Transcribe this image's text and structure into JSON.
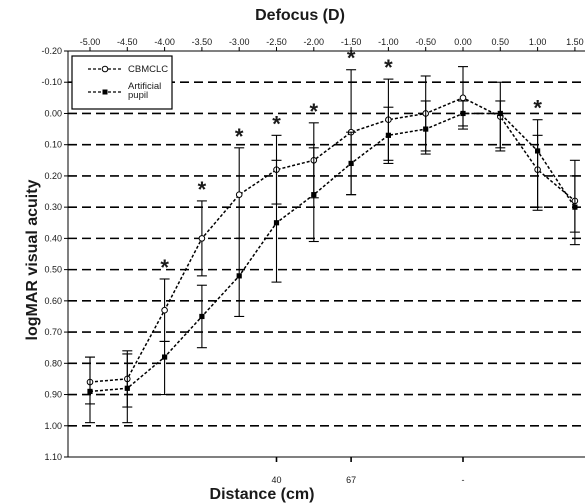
{
  "chart_data": {
    "type": "line",
    "title_top": "Defocus (D)",
    "xlabel_bottom": "Distance (cm)",
    "ylabel": "logMAR visual acuity",
    "x_top_ticks": [
      -5.0,
      -4.5,
      -4.0,
      -3.5,
      -3.0,
      -2.5,
      -2.0,
      -1.5,
      -1.0,
      -0.5,
      0.0,
      0.5,
      1.0,
      1.5
    ],
    "x_top_tick_labels": [
      "-5.00",
      "-4.50",
      "-4.00",
      "-3.50",
      "-3.00",
      "-2.50",
      "-2.00",
      "-1.50",
      "-1.00",
      "-0.50",
      "0.00",
      "0.50",
      "1.00",
      "1.50"
    ],
    "y_ticks": [
      -0.2,
      -0.1,
      0.0,
      0.1,
      0.2,
      0.3,
      0.4,
      0.5,
      0.6,
      0.7,
      0.8,
      0.9,
      1.0,
      1.1
    ],
    "y_tick_labels": [
      "-0.20",
      "-0.10",
      "0.00",
      "0.10",
      "0.20",
      "0.30",
      "0.40",
      "0.50",
      "0.60",
      "0.70",
      "0.80",
      "0.90",
      "1.00",
      "1.10"
    ],
    "ylim": [
      -0.2,
      1.1
    ],
    "y_inverted": true,
    "grid": true,
    "legend_position": "top-left",
    "bottom_ticks": [
      {
        "x": -2.5,
        "label": "40"
      },
      {
        "x": -1.5,
        "label": "67"
      },
      {
        "x": 0.0,
        "label": "-"
      }
    ],
    "x": [
      -5.0,
      -4.5,
      -4.0,
      -3.5,
      -3.0,
      -2.5,
      -2.0,
      -1.5,
      -1.0,
      -0.5,
      0.0,
      0.5,
      1.0,
      1.5
    ],
    "series": [
      {
        "name": "CBMCLC",
        "marker": "circle",
        "values": [
          0.86,
          0.85,
          0.63,
          0.4,
          0.26,
          0.18,
          0.15,
          0.06,
          0.02,
          0.0,
          -0.05,
          0.01,
          0.18,
          0.28
        ],
        "error_low": [
          0.78,
          0.76,
          0.53,
          0.28,
          0.11,
          0.07,
          0.03,
          -0.14,
          -0.11,
          -0.12,
          -0.15,
          -0.1,
          0.02,
          0.15
        ],
        "error_high": [
          0.93,
          0.94,
          0.73,
          0.52,
          0.4,
          0.29,
          0.27,
          0.26,
          0.15,
          0.12,
          0.05,
          0.11,
          0.31,
          0.42
        ]
      },
      {
        "name": "Artificial pupil",
        "marker": "square",
        "values": [
          0.89,
          0.88,
          0.78,
          0.65,
          0.52,
          0.35,
          0.26,
          0.16,
          0.07,
          0.05,
          0.0,
          0.0,
          0.12,
          0.3
        ],
        "error_low": [
          0.78,
          0.77,
          0.73,
          0.55,
          0.4,
          0.15,
          0.11,
          0.06,
          -0.02,
          -0.04,
          -0.04,
          -0.04,
          0.07,
          0.2
        ],
        "error_high": [
          0.99,
          0.99,
          0.9,
          0.75,
          0.65,
          0.54,
          0.41,
          0.26,
          0.16,
          0.13,
          0.04,
          0.12,
          0.3,
          0.38
        ]
      }
    ],
    "significance_marker": "*",
    "significance_at_x": [
      -4.0,
      -3.5,
      -3.0,
      -2.5,
      -2.0,
      -1.5,
      -1.0,
      1.0
    ],
    "legend": [
      {
        "label": "CBMCLC",
        "marker": "circle"
      },
      {
        "label": "Artificial\npupil",
        "marker": "square"
      }
    ]
  }
}
